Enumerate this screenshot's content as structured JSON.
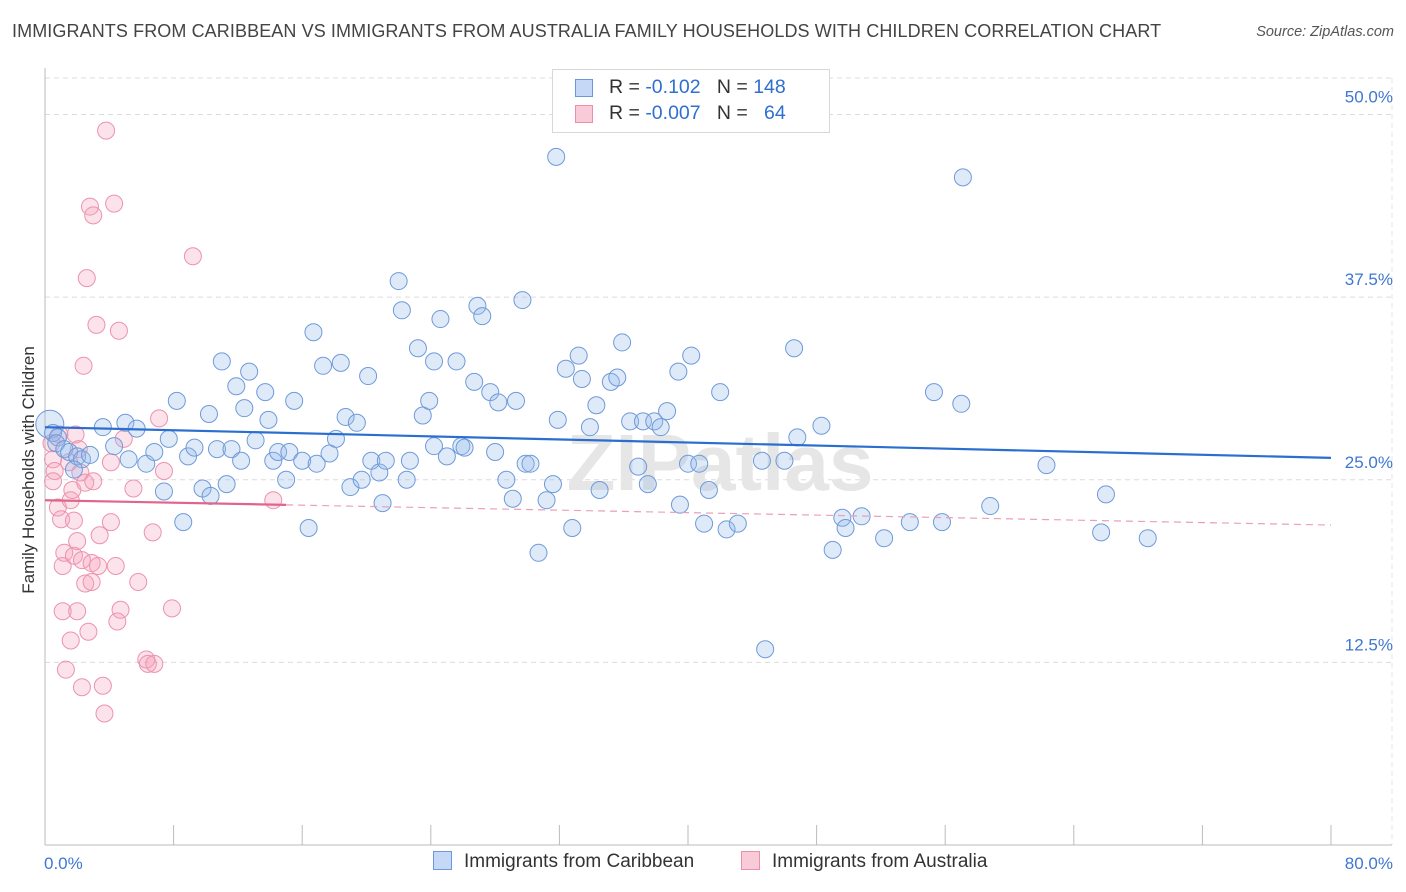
{
  "title": "IMMIGRANTS FROM CARIBBEAN VS IMMIGRANTS FROM AUSTRALIA FAMILY HOUSEHOLDS WITH CHILDREN CORRELATION CHART",
  "source": "Source: ZipAtlas.com",
  "watermark": "ZIPatlas",
  "legend": {
    "r_label": "R =",
    "n_label": "N =",
    "rows": [
      {
        "r": "-0.102",
        "n": "148"
      },
      {
        "r": "-0.007",
        "n": "64"
      }
    ]
  },
  "chart_data": {
    "type": "scatter",
    "title": "IMMIGRANTS FROM CARIBBEAN VS IMMIGRANTS FROM AUSTRALIA FAMILY HOUSEHOLDS WITH CHILDREN CORRELATION CHART",
    "ylabel": "Family Households with Children",
    "xlabel": "",
    "xlim": [
      0,
      80
    ],
    "ylim": [
      0,
      52.5
    ],
    "x_tick_labels": [
      "0.0%",
      "80.0%"
    ],
    "y_ticks": [
      12.5,
      25.0,
      37.5,
      50.0
    ],
    "y_tick_labels": [
      "12.5%",
      "25.0%",
      "37.5%",
      "50.0%"
    ],
    "grid": true,
    "legend_position": "top-center",
    "colors": {
      "caribbean": "#5b8fdc",
      "caribbean_line": "#2a6fcf",
      "australia": "#ef87a6",
      "australia_line": "#e0648c",
      "axis_text": "#3f77cf"
    },
    "series": [
      {
        "name": "Immigrants from Caribbean",
        "r": -0.102,
        "n": 148,
        "trend": {
          "x": [
            0,
            80
          ],
          "y": [
            28.6,
            26.5
          ],
          "style": "solid"
        },
        "points": [
          [
            0.3,
            28.8
          ],
          [
            0.5,
            28.2
          ],
          [
            0.8,
            27.9
          ],
          [
            0.7,
            27.5
          ],
          [
            1.2,
            27.1
          ],
          [
            1.5,
            26.9
          ],
          [
            2.0,
            26.6
          ],
          [
            2.3,
            26.4
          ],
          [
            1.8,
            25.7
          ],
          [
            2.8,
            26.7
          ],
          [
            3.6,
            28.6
          ],
          [
            4.3,
            27.3
          ],
          [
            5.0,
            28.9
          ],
          [
            5.2,
            26.4
          ],
          [
            5.7,
            28.5
          ],
          [
            6.3,
            26.1
          ],
          [
            6.8,
            26.9
          ],
          [
            7.4,
            24.2
          ],
          [
            7.7,
            27.8
          ],
          [
            8.2,
            30.4
          ],
          [
            8.6,
            22.1
          ],
          [
            8.9,
            26.6
          ],
          [
            9.3,
            27.2
          ],
          [
            9.8,
            24.4
          ],
          [
            10.3,
            23.9
          ],
          [
            10.2,
            29.5
          ],
          [
            10.7,
            27.1
          ],
          [
            11.0,
            33.1
          ],
          [
            11.3,
            24.7
          ],
          [
            11.6,
            27.1
          ],
          [
            11.9,
            31.4
          ],
          [
            12.2,
            26.3
          ],
          [
            12.4,
            29.9
          ],
          [
            12.7,
            32.4
          ],
          [
            13.1,
            27.7
          ],
          [
            13.7,
            31.0
          ],
          [
            13.9,
            29.1
          ],
          [
            14.2,
            26.3
          ],
          [
            14.5,
            26.9
          ],
          [
            15.0,
            25.0
          ],
          [
            15.2,
            26.9
          ],
          [
            15.5,
            30.4
          ],
          [
            16.0,
            26.3
          ],
          [
            16.4,
            21.7
          ],
          [
            16.7,
            35.1
          ],
          [
            16.9,
            26.1
          ],
          [
            17.3,
            32.8
          ],
          [
            17.7,
            26.8
          ],
          [
            18.1,
            27.8
          ],
          [
            18.4,
            33.0
          ],
          [
            18.7,
            29.3
          ],
          [
            19.0,
            24.5
          ],
          [
            19.4,
            28.9
          ],
          [
            19.7,
            25.0
          ],
          [
            20.1,
            32.1
          ],
          [
            20.3,
            26.3
          ],
          [
            20.8,
            25.5
          ],
          [
            21.0,
            23.4
          ],
          [
            21.2,
            26.3
          ],
          [
            22.0,
            38.6
          ],
          [
            22.2,
            36.6
          ],
          [
            22.5,
            25.0
          ],
          [
            22.7,
            26.3
          ],
          [
            23.2,
            34.0
          ],
          [
            23.5,
            29.4
          ],
          [
            23.9,
            30.4
          ],
          [
            24.2,
            33.1
          ],
          [
            24.6,
            36.0
          ],
          [
            24.2,
            27.3
          ],
          [
            25.0,
            26.6
          ],
          [
            25.6,
            33.1
          ],
          [
            25.9,
            27.3
          ],
          [
            26.1,
            27.2
          ],
          [
            26.7,
            31.7
          ],
          [
            26.9,
            36.9
          ],
          [
            27.2,
            36.2
          ],
          [
            27.7,
            31.0
          ],
          [
            28.0,
            26.9
          ],
          [
            28.2,
            30.3
          ],
          [
            28.7,
            25.0
          ],
          [
            29.1,
            23.7
          ],
          [
            29.3,
            30.4
          ],
          [
            29.7,
            37.3
          ],
          [
            29.9,
            26.1
          ],
          [
            30.2,
            26.1
          ],
          [
            30.7,
            20.0
          ],
          [
            31.2,
            23.6
          ],
          [
            31.6,
            24.7
          ],
          [
            31.9,
            29.1
          ],
          [
            31.8,
            47.1
          ],
          [
            32.4,
            32.6
          ],
          [
            32.8,
            21.7
          ],
          [
            33.2,
            33.5
          ],
          [
            33.4,
            31.9
          ],
          [
            33.9,
            28.6
          ],
          [
            34.3,
            30.1
          ],
          [
            34.5,
            24.3
          ],
          [
            35.2,
            31.7
          ],
          [
            35.6,
            32.0
          ],
          [
            35.9,
            34.4
          ],
          [
            36.4,
            29.0
          ],
          [
            36.9,
            25.9
          ],
          [
            37.2,
            29.0
          ],
          [
            37.5,
            24.7
          ],
          [
            37.9,
            29.0
          ],
          [
            38.3,
            28.6
          ],
          [
            38.7,
            29.7
          ],
          [
            39.4,
            32.4
          ],
          [
            39.5,
            23.3
          ],
          [
            40.0,
            26.1
          ],
          [
            40.2,
            33.5
          ],
          [
            40.7,
            26.1
          ],
          [
            41.0,
            22.0
          ],
          [
            41.3,
            24.3
          ],
          [
            42.0,
            31.0
          ],
          [
            42.4,
            21.6
          ],
          [
            43.1,
            22.0
          ],
          [
            44.6,
            26.3
          ],
          [
            44.8,
            13.4
          ],
          [
            46.0,
            26.3
          ],
          [
            46.6,
            34.0
          ],
          [
            46.8,
            27.9
          ],
          [
            48.3,
            28.7
          ],
          [
            49.0,
            20.2
          ],
          [
            49.6,
            22.4
          ],
          [
            49.8,
            21.7
          ],
          [
            50.8,
            22.5
          ],
          [
            52.2,
            21.0
          ],
          [
            53.8,
            22.1
          ],
          [
            55.8,
            22.1
          ],
          [
            55.3,
            31.0
          ],
          [
            57.0,
            30.2
          ],
          [
            57.1,
            45.7
          ],
          [
            58.8,
            23.2
          ],
          [
            62.3,
            26.0
          ],
          [
            65.7,
            21.4
          ],
          [
            66.0,
            24.0
          ],
          [
            68.6,
            21.0
          ]
        ]
      },
      {
        "name": "Immigrants from Australia",
        "r": -0.007,
        "n": 64,
        "trend": {
          "x": [
            0,
            80
          ],
          "y": [
            23.6,
            21.9
          ],
          "solid_until": 15
        },
        "points": [
          [
            0.4,
            27.5
          ],
          [
            0.5,
            26.4
          ],
          [
            0.6,
            25.6
          ],
          [
            0.5,
            24.9
          ],
          [
            0.8,
            23.1
          ],
          [
            0.9,
            28.1
          ],
          [
            1.0,
            22.3
          ],
          [
            1.1,
            19.1
          ],
          [
            1.1,
            16.0
          ],
          [
            1.2,
            20.0
          ],
          [
            1.3,
            12.0
          ],
          [
            1.5,
            26.2
          ],
          [
            1.6,
            23.6
          ],
          [
            1.6,
            14.0
          ],
          [
            1.7,
            24.3
          ],
          [
            1.8,
            19.8
          ],
          [
            1.8,
            22.2
          ],
          [
            1.9,
            28.1
          ],
          [
            2.0,
            16.0
          ],
          [
            2.0,
            20.8
          ],
          [
            2.1,
            27.1
          ],
          [
            2.2,
            25.5
          ],
          [
            2.3,
            19.5
          ],
          [
            2.3,
            10.8
          ],
          [
            2.4,
            32.8
          ],
          [
            2.5,
            17.9
          ],
          [
            2.5,
            24.8
          ],
          [
            2.6,
            38.8
          ],
          [
            2.7,
            14.6
          ],
          [
            2.8,
            43.7
          ],
          [
            2.9,
            18.0
          ],
          [
            2.9,
            19.3
          ],
          [
            3.0,
            43.1
          ],
          [
            3.0,
            24.9
          ],
          [
            3.2,
            35.6
          ],
          [
            3.3,
            19.1
          ],
          [
            3.4,
            21.2
          ],
          [
            3.6,
            10.9
          ],
          [
            3.7,
            9.0
          ],
          [
            3.8,
            48.9
          ],
          [
            4.1,
            26.2
          ],
          [
            4.1,
            22.1
          ],
          [
            4.3,
            43.9
          ],
          [
            4.4,
            19.1
          ],
          [
            4.5,
            15.3
          ],
          [
            4.6,
            35.2
          ],
          [
            4.7,
            16.1
          ],
          [
            4.9,
            27.8
          ],
          [
            5.5,
            24.4
          ],
          [
            5.8,
            18.0
          ],
          [
            6.3,
            12.7
          ],
          [
            6.4,
            12.4
          ],
          [
            6.7,
            21.4
          ],
          [
            6.8,
            12.4
          ],
          [
            7.1,
            29.2
          ],
          [
            7.4,
            25.6
          ],
          [
            7.9,
            16.2
          ],
          [
            9.2,
            40.3
          ],
          [
            14.2,
            23.6
          ]
        ]
      }
    ]
  },
  "x_axis": {
    "left_label": "0.0%",
    "right_label": "80.0%"
  },
  "y_axis_label": "Family Households with Children",
  "bottom_legend": [
    {
      "label": "Immigrants from Caribbean"
    },
    {
      "label": "Immigrants from Australia"
    }
  ]
}
